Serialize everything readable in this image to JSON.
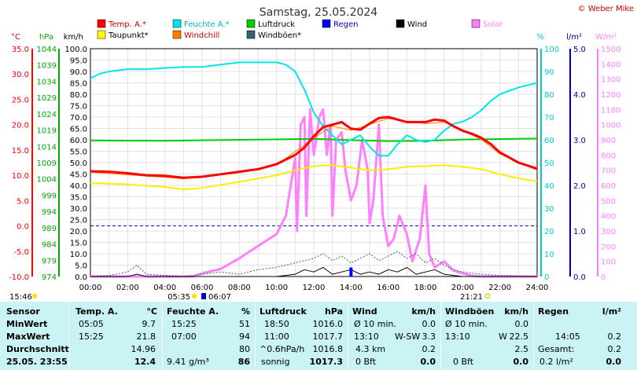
{
  "chart_data": {
    "type": "line",
    "title": "Samstag, 25.05.2024",
    "watermark": "© Weber Mike",
    "x_axis": {
      "range": [
        "00:00",
        "24:00"
      ],
      "ticks": [
        "00:00",
        "02:00",
        "04:00",
        "06:00",
        "08:00",
        "10:00",
        "12:00",
        "14:00",
        "16:00",
        "18:00",
        "20:00",
        "22:00",
        "24:00"
      ]
    },
    "axes": {
      "temp": {
        "unit": "°C",
        "range": [
          -10,
          35
        ],
        "ticks": [
          "35.0",
          "30.0",
          "25.0",
          "20.0",
          "15.0",
          "10.0",
          "5.0",
          "0.0",
          "-5.0",
          "-10.0"
        ],
        "color": "#ff0000"
      },
      "pressure": {
        "unit": "hPa",
        "range": [
          974,
          1045
        ],
        "ticks": [
          "1044",
          "1039",
          "1034",
          "1029",
          "1024",
          "1019",
          "1014",
          "1009",
          "1004",
          "999",
          "994",
          "989",
          "984",
          "979",
          "974"
        ],
        "color": "#00aa00"
      },
      "wind": {
        "unit": "km/h",
        "range": [
          0,
          100
        ],
        "ticks": [
          "100.0",
          "95.0",
          "90.0",
          "85.0",
          "80.0",
          "75.0",
          "70.0",
          "65.0",
          "60.0",
          "55.0",
          "50.0",
          "45.0",
          "40.0",
          "35.0",
          "30.0",
          "25.0",
          "20.0",
          "15.0",
          "10.0",
          "5.0",
          "0.0"
        ],
        "color": "#000000"
      },
      "humidity": {
        "unit": "%",
        "range": [
          0,
          100
        ],
        "ticks": [
          "100",
          "90",
          "80",
          "70",
          "60",
          "50",
          "40",
          "30",
          "20",
          "10",
          "0"
        ],
        "color": "#00cccc"
      },
      "rain": {
        "unit": "l/m²",
        "range": [
          0,
          5
        ],
        "ticks": [
          "5.0",
          "4.0",
          "3.0",
          "2.0",
          "1.0",
          "0.0"
        ],
        "color": "#0000aa"
      },
      "solar": {
        "unit": "W/m²",
        "range": [
          0,
          1500
        ],
        "ticks": [
          "1500",
          "1400",
          "1300",
          "1200",
          "1100",
          "1000",
          "900",
          "800",
          "700",
          "600",
          "500",
          "400",
          "300",
          "200",
          "100",
          "0"
        ],
        "color": "#ff80ff"
      }
    },
    "legend": [
      {
        "name": "Temp. A.*",
        "color": "#ff0000"
      },
      {
        "name": "Feuchte A.*",
        "color": "#00e5e5"
      },
      {
        "name": "Luftdruck",
        "color": "#00cc00"
      },
      {
        "name": "Regen",
        "color": "#0000ff"
      },
      {
        "name": "Wind",
        "color": "#000000"
      },
      {
        "name": "Solar",
        "color": "#ff80ff"
      },
      {
        "name": "Taupunkt*",
        "color": "#ffff00"
      },
      {
        "name": "Windchill",
        "color": "#ff8000"
      },
      {
        "name": "Windböen*",
        "color": "#336666"
      }
    ],
    "sun_times": {
      "sunrise": "05:35",
      "moonset_marker": "06:07",
      "sunset": "21:21",
      "moonrise_marker": "15:46"
    },
    "series": [
      {
        "name": "Temp. A.*",
        "axis": "temp",
        "color": "#ff0000",
        "width": 3,
        "points": [
          [
            0,
            10.8
          ],
          [
            1,
            10.7
          ],
          [
            2,
            10.4
          ],
          [
            3,
            10.0
          ],
          [
            4,
            9.9
          ],
          [
            5,
            9.5
          ],
          [
            6,
            9.7
          ],
          [
            7,
            10.2
          ],
          [
            8,
            10.7
          ],
          [
            9,
            11.2
          ],
          [
            10,
            12.2
          ],
          [
            11,
            14.0
          ],
          [
            11.5,
            15.5
          ],
          [
            12,
            17.7
          ],
          [
            12.5,
            19.5
          ],
          [
            13,
            20.0
          ],
          [
            13.5,
            20.5
          ],
          [
            14,
            19.2
          ],
          [
            14.5,
            19.0
          ],
          [
            15,
            20.2
          ],
          [
            15.5,
            21.3
          ],
          [
            16,
            21.5
          ],
          [
            16.5,
            21.0
          ],
          [
            17,
            20.5
          ],
          [
            17.5,
            20.5
          ],
          [
            18,
            20.5
          ],
          [
            18.5,
            21.0
          ],
          [
            19,
            20.8
          ],
          [
            19.5,
            19.7
          ],
          [
            20,
            18.8
          ],
          [
            20.5,
            18.2
          ],
          [
            21,
            17.4
          ],
          [
            21.5,
            16.2
          ],
          [
            22,
            14.5
          ],
          [
            23,
            12.5
          ],
          [
            24,
            11.3
          ]
        ]
      },
      {
        "name": "Windchill",
        "axis": "temp",
        "color": "#ff8000",
        "width": 1,
        "points": [
          [
            0,
            10.6
          ],
          [
            4,
            9.6
          ],
          [
            5,
            9.3
          ],
          [
            8,
            10.5
          ],
          [
            10,
            12.0
          ],
          [
            12,
            17.4
          ],
          [
            13,
            19.7
          ],
          [
            14,
            18.9
          ],
          [
            16,
            21.2
          ],
          [
            18,
            20.2
          ],
          [
            19,
            20.5
          ],
          [
            21,
            17.1
          ],
          [
            22,
            14.2
          ],
          [
            24,
            11.0
          ]
        ]
      },
      {
        "name": "Feuchte A.*",
        "axis": "humidity",
        "color": "#00e5e5",
        "width": 2,
        "points": [
          [
            0,
            87
          ],
          [
            0.5,
            89
          ],
          [
            1,
            90
          ],
          [
            2,
            91
          ],
          [
            3,
            91
          ],
          [
            4,
            91.5
          ],
          [
            5,
            92
          ],
          [
            6,
            92
          ],
          [
            7,
            93
          ],
          [
            8,
            94
          ],
          [
            9,
            94
          ],
          [
            10,
            94
          ],
          [
            10.5,
            93
          ],
          [
            11,
            90
          ],
          [
            11.5,
            82
          ],
          [
            12,
            72
          ],
          [
            12.5,
            66
          ],
          [
            13,
            62
          ],
          [
            13.5,
            58
          ],
          [
            14,
            60
          ],
          [
            14.5,
            62
          ],
          [
            15,
            57
          ],
          [
            15.5,
            53
          ],
          [
            16,
            53
          ],
          [
            16.5,
            58
          ],
          [
            17,
            62
          ],
          [
            17.5,
            60
          ],
          [
            18,
            59
          ],
          [
            18.5,
            60
          ],
          [
            19,
            64
          ],
          [
            19.5,
            67
          ],
          [
            20,
            68
          ],
          [
            20.5,
            70
          ],
          [
            21,
            73
          ],
          [
            21.5,
            77
          ],
          [
            22,
            80
          ],
          [
            23,
            83
          ],
          [
            24,
            85
          ]
        ]
      },
      {
        "name": "Taupunkt*",
        "axis": "temp",
        "color": "#ffee00",
        "width": 2,
        "points": [
          [
            0,
            8.5
          ],
          [
            2,
            8.2
          ],
          [
            4,
            7.7
          ],
          [
            5,
            7.2
          ],
          [
            6,
            7.5
          ],
          [
            8,
            8.7
          ],
          [
            10,
            10.0
          ],
          [
            11,
            11.0
          ],
          [
            12,
            11.8
          ],
          [
            13,
            12.0
          ],
          [
            14,
            11.5
          ],
          [
            15,
            11.0
          ],
          [
            16,
            11.2
          ],
          [
            17,
            11.7
          ],
          [
            18,
            11.8
          ],
          [
            19,
            12.0
          ],
          [
            20,
            11.7
          ],
          [
            21,
            11.2
          ],
          [
            22,
            10.2
          ],
          [
            23,
            9.4
          ],
          [
            24,
            8.8
          ]
        ]
      },
      {
        "name": "Luftdruck",
        "axis": "pressure",
        "color": "#00cc00",
        "width": 2,
        "points": [
          [
            0,
            1016.4
          ],
          [
            4,
            1016.3
          ],
          [
            8,
            1016.6
          ],
          [
            12,
            1016.9
          ],
          [
            14,
            1016.5
          ],
          [
            16,
            1016.2
          ],
          [
            18,
            1016.3
          ],
          [
            20,
            1016.7
          ],
          [
            24,
            1017.0
          ]
        ]
      },
      {
        "name": "Solar",
        "axis": "solar",
        "color": "#ff80ff",
        "width": 3,
        "points": [
          [
            0,
            0
          ],
          [
            5.5,
            0
          ],
          [
            6,
            20
          ],
          [
            7,
            50
          ],
          [
            8,
            120
          ],
          [
            9,
            200
          ],
          [
            10,
            280
          ],
          [
            10.5,
            400
          ],
          [
            11,
            780
          ],
          [
            11.1,
            300
          ],
          [
            11.3,
            1000
          ],
          [
            11.5,
            1050
          ],
          [
            11.6,
            400
          ],
          [
            11.8,
            1100
          ],
          [
            12,
            800
          ],
          [
            12.3,
            1050
          ],
          [
            12.5,
            1100
          ],
          [
            12.7,
            800
          ],
          [
            12.9,
            1000
          ],
          [
            13,
            400
          ],
          [
            13.2,
            900
          ],
          [
            13.5,
            950
          ],
          [
            13.7,
            700
          ],
          [
            14,
            500
          ],
          [
            14.3,
            600
          ],
          [
            14.6,
            900
          ],
          [
            14.9,
            700
          ],
          [
            15,
            350
          ],
          [
            15.2,
            500
          ],
          [
            15.5,
            1000
          ],
          [
            15.7,
            400
          ],
          [
            16,
            200
          ],
          [
            16.3,
            250
          ],
          [
            16.6,
            400
          ],
          [
            17,
            280
          ],
          [
            17.3,
            100
          ],
          [
            17.7,
            250
          ],
          [
            18,
            600
          ],
          [
            18.2,
            150
          ],
          [
            18.5,
            60
          ],
          [
            19,
            100
          ],
          [
            19.5,
            40
          ],
          [
            20,
            20
          ],
          [
            20.5,
            5
          ],
          [
            21,
            0
          ],
          [
            24,
            0
          ]
        ]
      },
      {
        "name": "Windböen*",
        "axis": "wind",
        "color": "#336666",
        "width": 1,
        "dash": "2,2",
        "points": [
          [
            0,
            0
          ],
          [
            1,
            0.5
          ],
          [
            2,
            2
          ],
          [
            2.5,
            5
          ],
          [
            3,
            1
          ],
          [
            4,
            0.5
          ],
          [
            5,
            0
          ],
          [
            6,
            1
          ],
          [
            7,
            2
          ],
          [
            8,
            1
          ],
          [
            9,
            3
          ],
          [
            10,
            4
          ],
          [
            11,
            6
          ],
          [
            12,
            8
          ],
          [
            12.5,
            10
          ],
          [
            13,
            7
          ],
          [
            13.5,
            9
          ],
          [
            14,
            6
          ],
          [
            14.5,
            8
          ],
          [
            15,
            10
          ],
          [
            15.5,
            7
          ],
          [
            16,
            9
          ],
          [
            16.5,
            11
          ],
          [
            17,
            8
          ],
          [
            17.5,
            10
          ],
          [
            18,
            6
          ],
          [
            18.5,
            8
          ],
          [
            19,
            5
          ],
          [
            19.5,
            3
          ],
          [
            20,
            2
          ],
          [
            21,
            1
          ],
          [
            22,
            0.5
          ],
          [
            24,
            0
          ]
        ]
      },
      {
        "name": "Wind",
        "axis": "wind",
        "color": "#000000",
        "width": 1,
        "points": [
          [
            0,
            0
          ],
          [
            2,
            0
          ],
          [
            2.5,
            1
          ],
          [
            3,
            0
          ],
          [
            10,
            0
          ],
          [
            11,
            1
          ],
          [
            11.5,
            3
          ],
          [
            12,
            2
          ],
          [
            12.5,
            4
          ],
          [
            13,
            1
          ],
          [
            13.5,
            2
          ],
          [
            14,
            3
          ],
          [
            14.5,
            1
          ],
          [
            15,
            2
          ],
          [
            15.5,
            1
          ],
          [
            16,
            3
          ],
          [
            16.5,
            2
          ],
          [
            17,
            4
          ],
          [
            17.5,
            1
          ],
          [
            18,
            2
          ],
          [
            18.5,
            3
          ],
          [
            19,
            1
          ],
          [
            20,
            0
          ],
          [
            24,
            0
          ]
        ]
      }
    ],
    "rain_bars": [
      {
        "time": 14.0,
        "value": 0.2
      }
    ],
    "ref_lines": [
      {
        "axis": "temp",
        "value": 0,
        "color": "#0000cc",
        "dash": "4,3"
      }
    ]
  },
  "table": {
    "headers": {
      "sensor": "Sensor",
      "temp": "Temp. A.",
      "temp_unit": "°C",
      "hum": "Feuchte A.",
      "hum_unit": "%",
      "press": "Luftdruck",
      "press_unit": "hPa",
      "wind": "Wind",
      "wind_unit": "km/h",
      "gust": "Windböen",
      "gust_unit": "km/h",
      "rain": "Regen",
      "rain_unit": "l/m²"
    },
    "rows": [
      {
        "label": "MinWert",
        "temp_time": "05:05",
        "temp": "9.7",
        "hum_time": "15:25",
        "hum": "51",
        "press_time": "18:50",
        "press": "1016.0",
        "wind_time": "Ø 10 min.",
        "wind_dir": "",
        "wind": "0.0",
        "gust_time": "Ø 10 min.",
        "gust": "0.0",
        "rain_time": "",
        "rain": ""
      },
      {
        "label": "MaxWert",
        "temp_time": "15:25",
        "temp": "21.8",
        "hum_time": "07:00",
        "hum": "94",
        "press_time": "11:00",
        "press": "1017.7",
        "wind_time": "13:10",
        "wind_dir": "W-SW",
        "wind": "3.3",
        "gust_time": "13:10",
        "gust_dir": "W",
        "gust": "22.5",
        "rain_time": "14:05",
        "rain": "0.2"
      },
      {
        "label": "Durchschnitt",
        "temp_time": "",
        "temp": "14.96",
        "hum_time": "",
        "hum": "80",
        "press_time": "^0.6hPa/h",
        "press": "1016.8",
        "wind_time": "4.3 km",
        "wind_dir": "",
        "wind": "0.2",
        "gust_time": "",
        "gust": "2.5",
        "rain_time": "Gesamt:",
        "rain": "0.2"
      },
      {
        "label": "25.05.  23:55",
        "temp_time": "",
        "temp": "12.4",
        "hum_time": "9.41 g/m³",
        "hum": "86",
        "press_time": "sonnig",
        "press": "1017.3",
        "wind_time": "0 Bft",
        "wind_dir": "",
        "wind": "0.0",
        "gust_time": "0 Bft",
        "gust": "0.0",
        "rain_time": "0.2 l/m²",
        "rain": "0.0"
      }
    ]
  }
}
